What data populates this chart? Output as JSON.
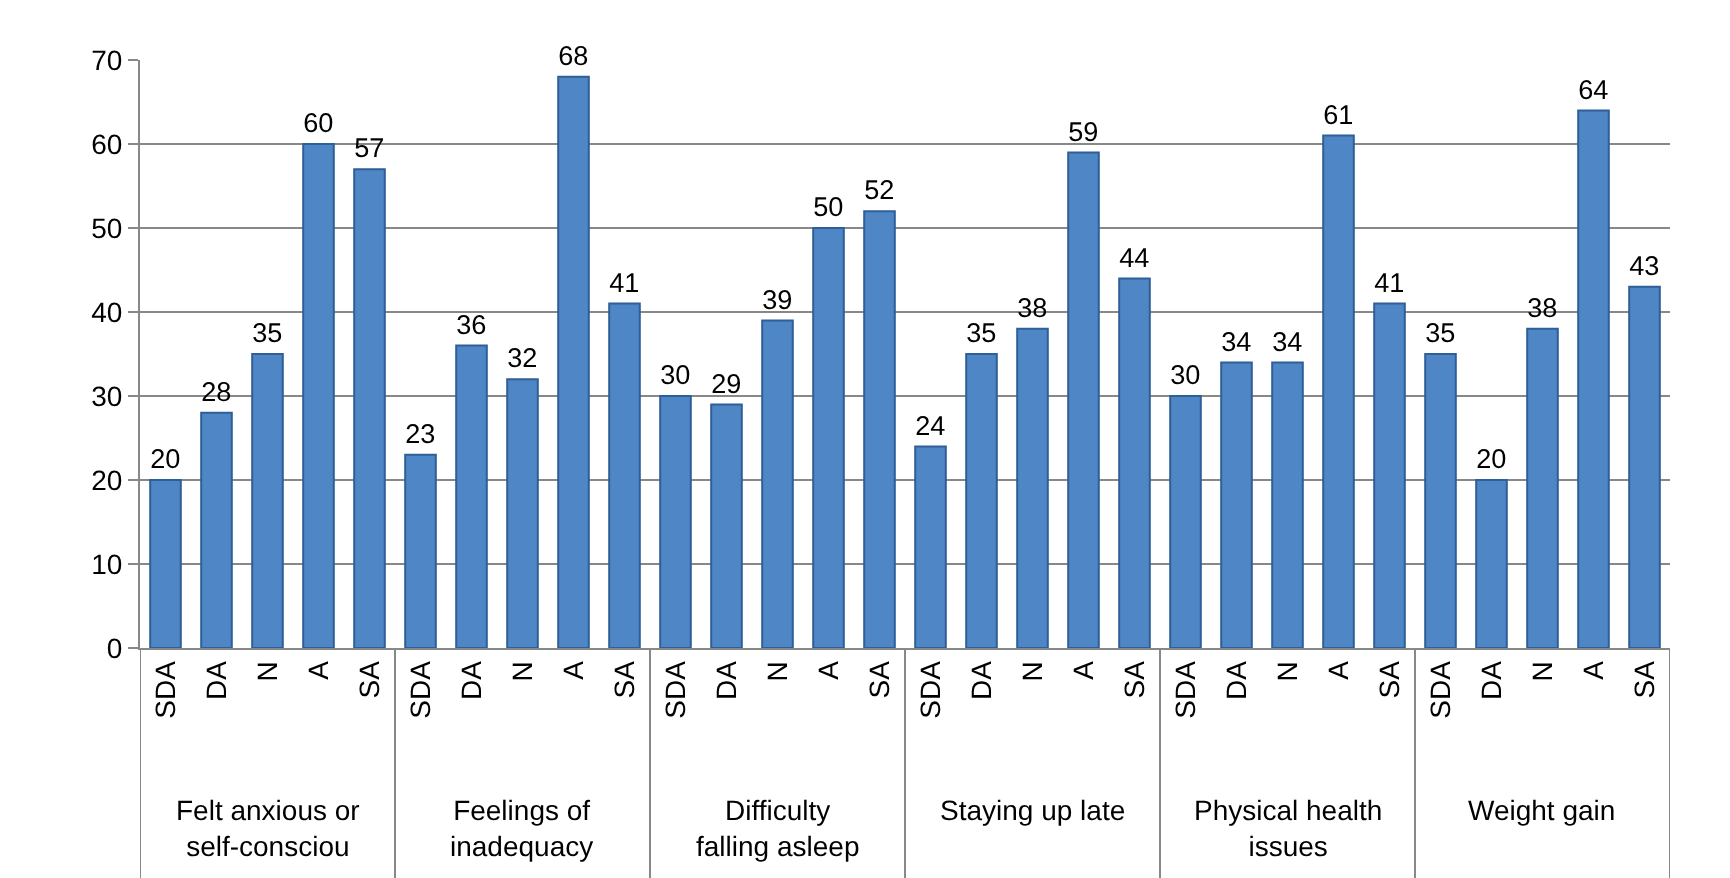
{
  "chart_data": {
    "type": "bar",
    "categories": [
      "SDA",
      "DA",
      "N",
      "A",
      "SA",
      "SDA",
      "DA",
      "N",
      "A",
      "SA",
      "SDA",
      "DA",
      "N",
      "A",
      "SA",
      "SDA",
      "DA",
      "N",
      "A",
      "SA",
      "SDA",
      "DA",
      "N",
      "A",
      "SA",
      "SDA",
      "DA",
      "N",
      "A",
      "SA"
    ],
    "values": [
      20,
      28,
      35,
      60,
      57,
      23,
      36,
      32,
      68,
      41,
      30,
      29,
      39,
      50,
      52,
      24,
      35,
      38,
      59,
      44,
      30,
      34,
      34,
      61,
      41,
      35,
      20,
      38,
      64,
      43
    ],
    "color": "#4f86c6",
    "ylim": [
      0,
      70
    ],
    "yticks": [
      0,
      10,
      20,
      30,
      40,
      50,
      60,
      70
    ],
    "grid": "y",
    "data_labels": true,
    "annotations": [
      "Felt anxious or\nself-consciou",
      "Feelings of\ninadequacy",
      "Difficulty\nfalling asleep",
      "Staying up late",
      "Physical health\nissues",
      "Weight gain"
    ]
  }
}
